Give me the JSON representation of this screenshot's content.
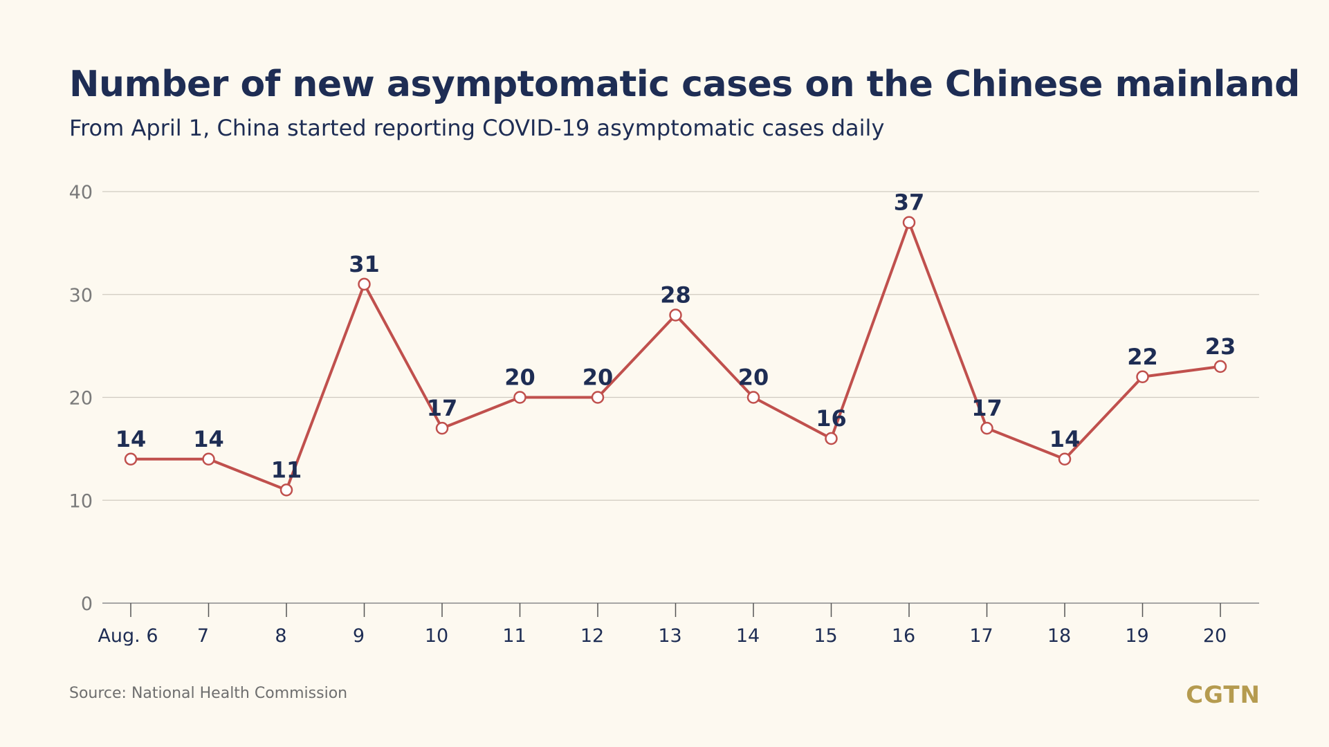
{
  "header": {
    "title": "Number of new asymptomatic cases on the Chinese mainland",
    "subtitle": "From April 1, China started reporting COVID-19 asymptomatic cases daily"
  },
  "footer": {
    "source": "Source: National Health Commission",
    "logo": "CGTN"
  },
  "colors": {
    "line": "#c0504d",
    "label": "#1e2d54",
    "axis_text": "#7a7a7a",
    "grid": "#cfcac0",
    "logo": "#b59b4f"
  },
  "chart_data": {
    "type": "line",
    "title": "Number of new asymptomatic cases on the Chinese mainland",
    "subtitle": "From April 1, China started reporting COVID-19 asymptomatic cases daily",
    "categories": [
      "Aug. 6",
      "7",
      "8",
      "9",
      "10",
      "11",
      "12",
      "13",
      "14",
      "15",
      "16",
      "17",
      "18",
      "19",
      "20"
    ],
    "series": [
      {
        "values": [
          14,
          14,
          11,
          31,
          17,
          20,
          20,
          28,
          20,
          16,
          37,
          17,
          14,
          22,
          23
        ]
      }
    ],
    "yticks": [
      0,
      10,
      20,
      30,
      40
    ],
    "ylim": [
      0,
      40
    ],
    "grid": true,
    "legend": "none"
  }
}
